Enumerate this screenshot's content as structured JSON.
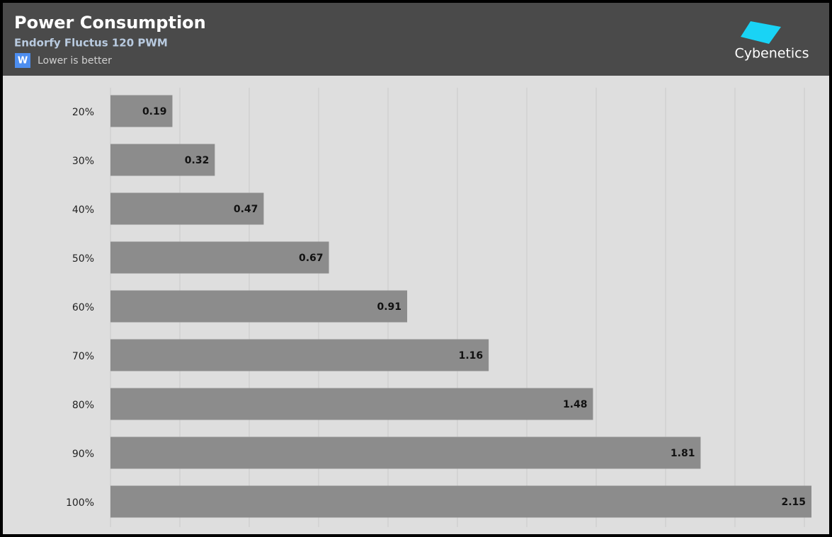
{
  "chart_data": {
    "type": "bar",
    "orientation": "horizontal",
    "title": "Power Consumption",
    "subtitle": "Endorfy Fluctus 120 PWM",
    "unit_badge": "W",
    "note": "Lower is better",
    "brand": "Cybenetics",
    "categories": [
      "20%",
      "30%",
      "40%",
      "50%",
      "60%",
      "70%",
      "80%",
      "90%",
      "100%"
    ],
    "values": [
      0.19,
      0.32,
      0.47,
      0.67,
      0.91,
      1.16,
      1.48,
      1.81,
      2.15
    ],
    "color": "#8c8c8c",
    "xlim": [
      0,
      2.15
    ],
    "grid": true
  }
}
